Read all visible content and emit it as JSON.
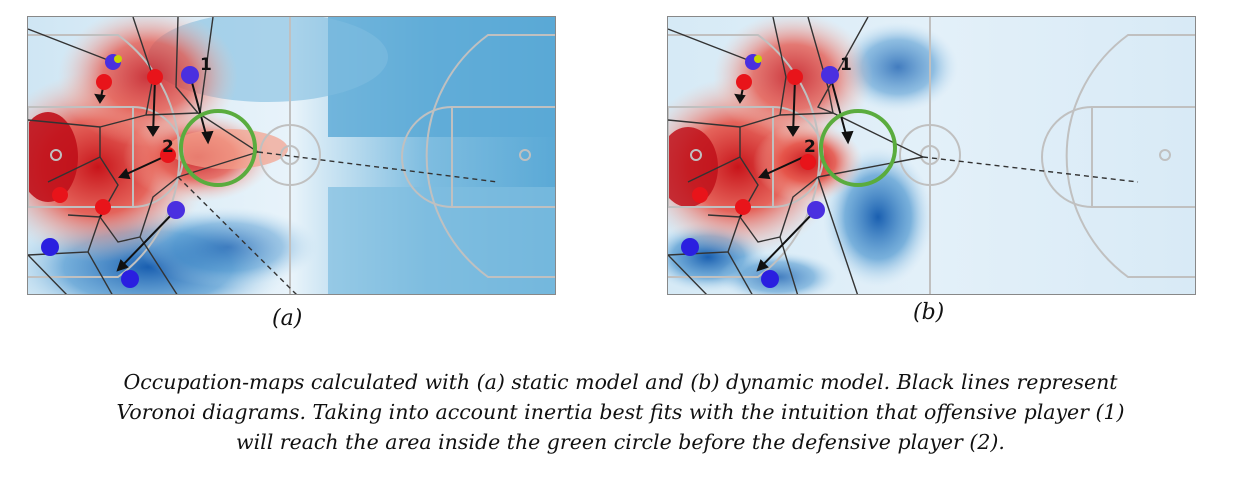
{
  "figure": {
    "panels": [
      {
        "id": "a",
        "label": "(a)",
        "model": "static"
      },
      {
        "id": "b",
        "label": "(b)",
        "model": "dynamic"
      }
    ],
    "player_markers": {
      "offensive": "1",
      "defensive": "2"
    },
    "colors": {
      "attacker_dot": "#2a1fe0",
      "defender_dot": "#e8141a",
      "ball_dot": "#c8d400",
      "highlight_circle": "#5aac3e",
      "voronoi_lines": "#333333",
      "occupation_offense": "#5aa9d6",
      "occupation_defense": "#e23a32",
      "court_lines": "#b8b8b8"
    },
    "caption_lines": [
      "Occupation-maps calculated with (a) static model and (b) dynamic model. Black lines represent",
      "Voronoi diagrams. Taking into account inertia best fits with the intuition that offensive player (1)",
      "will reach the area inside the green circle before the defensive player (2)."
    ]
  }
}
